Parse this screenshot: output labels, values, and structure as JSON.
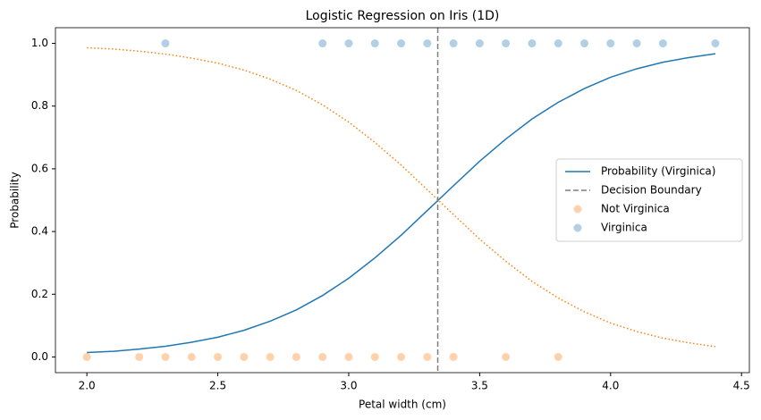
{
  "chart_data": {
    "type": "line",
    "title": "Logistic Regression on Iris (1D)",
    "x_label": "Petal width (cm)",
    "y_label": "Probability",
    "xlim": [
      1.88,
      4.53
    ],
    "ylim": [
      -0.05,
      1.05
    ],
    "xticks": [
      {
        "value": 2,
        "label": "2.0"
      },
      {
        "value": 2.5,
        "label": "2.5"
      },
      {
        "value": 3,
        "label": "3.0"
      },
      {
        "value": 3.5,
        "label": "3.5"
      },
      {
        "value": 4,
        "label": "4.0"
      },
      {
        "value": 4.5,
        "label": "4.5"
      }
    ],
    "yticks": [
      {
        "value": 0,
        "label": "0.0"
      },
      {
        "value": 0.2,
        "label": "0.2"
      },
      {
        "value": 0.4,
        "label": "0.4"
      },
      {
        "value": 0.6,
        "label": "0.6"
      },
      {
        "value": 0.8,
        "label": "0.8"
      },
      {
        "value": 1,
        "label": "1.0"
      }
    ],
    "legend": "center right",
    "series": [
      {
        "name": "Probability (Virginica)",
        "type": "line",
        "style": "solid",
        "color": "#1f77b4",
        "x": [
          2.0,
          2.1,
          2.2,
          2.3,
          2.4,
          2.5,
          2.6,
          2.7,
          2.8,
          2.9,
          3.0,
          3.1,
          3.2,
          3.3,
          3.4,
          3.5,
          3.6,
          3.7,
          3.8,
          3.9,
          4.0,
          4.1,
          4.2,
          4.3,
          4.4
        ],
        "values": [
          0.014,
          0.018,
          0.025,
          0.034,
          0.047,
          0.063,
          0.085,
          0.114,
          0.15,
          0.196,
          0.251,
          0.316,
          0.388,
          0.467,
          0.546,
          0.624,
          0.695,
          0.759,
          0.812,
          0.856,
          0.892,
          0.919,
          0.94,
          0.955,
          0.967
        ]
      },
      {
        "type": "line",
        "style": "dotted",
        "color": "#ff7f0e",
        "x": [
          2.0,
          2.1,
          2.2,
          2.3,
          2.4,
          2.5,
          2.6,
          2.7,
          2.8,
          2.9,
          3.0,
          3.1,
          3.2,
          3.3,
          3.4,
          3.5,
          3.6,
          3.7,
          3.8,
          3.9,
          4.0,
          4.1,
          4.2,
          4.3,
          4.4
        ],
        "values": [
          0.986,
          0.982,
          0.975,
          0.966,
          0.953,
          0.937,
          0.915,
          0.886,
          0.85,
          0.804,
          0.749,
          0.684,
          0.612,
          0.533,
          0.454,
          0.376,
          0.305,
          0.241,
          0.188,
          0.144,
          0.108,
          0.081,
          0.06,
          0.045,
          0.033
        ]
      },
      {
        "name": "Decision Boundary",
        "type": "vline",
        "style": "dashed",
        "color": "#7f7f7f",
        "x": 3.34
      },
      {
        "name": "Not Virginica",
        "type": "scatter",
        "color": "#ff7f0e",
        "x": [
          2.0,
          2.2,
          2.3,
          2.4,
          2.5,
          2.6,
          2.7,
          2.8,
          2.9,
          3.0,
          3.1,
          3.2,
          3.3,
          3.4,
          3.6,
          3.8
        ],
        "values": [
          0,
          0,
          0,
          0,
          0,
          0,
          0,
          0,
          0,
          0,
          0,
          0,
          0,
          0,
          0,
          0
        ]
      },
      {
        "name": "Virginica",
        "type": "scatter",
        "color": "#1f77b4",
        "x": [
          2.3,
          2.9,
          3.0,
          3.1,
          3.2,
          3.3,
          3.4,
          3.5,
          3.6,
          3.7,
          3.8,
          3.9,
          4.0,
          4.1,
          4.2,
          4.4
        ],
        "values": [
          1,
          1,
          1,
          1,
          1,
          1,
          1,
          1,
          1,
          1,
          1,
          1,
          1,
          1,
          1,
          1
        ]
      }
    ]
  }
}
